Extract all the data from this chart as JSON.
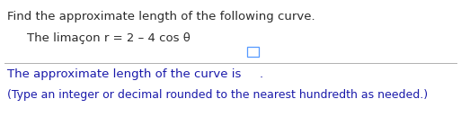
{
  "line1": "Find the approximate length of the following curve.",
  "line2": "The limaçon r = 2 – 4 cos θ",
  "line3_prefix": "The approximate length of the curve is ",
  "line3_suffix": ".",
  "line4": "(Type an integer or decimal rounded to the nearest hundredth as needed.)",
  "bg_color": "#ffffff",
  "text_color_black": "#2b2b2b",
  "text_color_blue": "#1a1aaa",
  "divider_color": "#b0b0b0",
  "font_size_line1": 9.5,
  "font_size_line2": 9.5,
  "font_size_line3": 9.5,
  "font_size_line4": 9.0,
  "box_color": "#5599ff",
  "indent_line2": 30
}
